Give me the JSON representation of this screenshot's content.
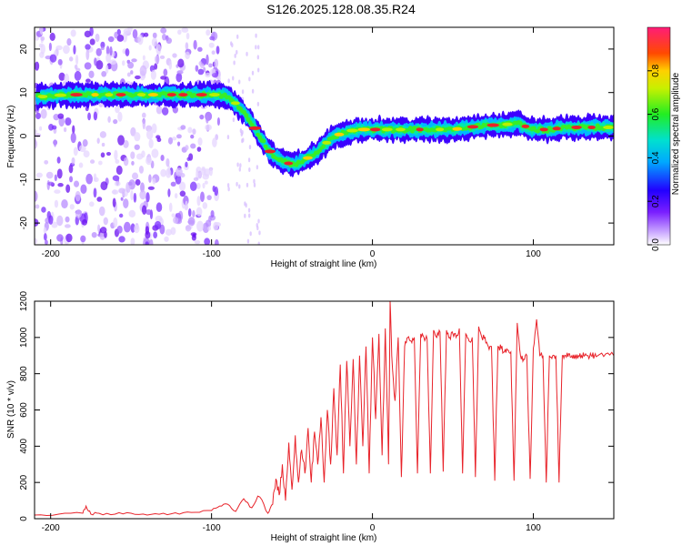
{
  "title": "S126.2025.128.08.35.R24",
  "colors": {
    "line": "#e8232a",
    "axis": "#000000",
    "background": "#ffffff",
    "ridge_core": "#e8232a",
    "ridge_mid": "#00d6c8",
    "ridge_edge": "#3c00ff",
    "noise": "#8a2be2"
  },
  "chart_data": [
    {
      "type": "heatmap",
      "xlabel": "Height of straight line (km)",
      "ylabel": "Frequency (Hz)",
      "xlim": [
        -210,
        150
      ],
      "ylim": [
        -25,
        25
      ],
      "xticks": [
        -200,
        -100,
        0,
        100
      ],
      "yticks": [
        -20,
        -10,
        0,
        10,
        20
      ],
      "xtick_labels": [
        "-200",
        "-100",
        "0",
        "100"
      ],
      "ytick_labels": [
        "-20",
        "-10",
        "0",
        "10",
        "20"
      ],
      "colorbar": {
        "label": "Normalized spectral amplitude",
        "range": [
          0,
          1
        ],
        "ticks": [
          0.0,
          0.2,
          0.4,
          0.6,
          0.8
        ],
        "tick_labels": [
          "0.0",
          "0.2",
          "0.4",
          "0.6",
          "0.8"
        ],
        "colormap": "rainbow (white-purple-blue-cyan-green-yellow-red-magenta)"
      },
      "ridge": {
        "x": [
          -208,
          -190,
          -170,
          -150,
          -130,
          -110,
          -100,
          -95,
          -90,
          -85,
          -80,
          -75,
          -70,
          -65,
          -60,
          -55,
          -50,
          -45,
          -40,
          -35,
          -30,
          -25,
          -20,
          -15,
          -10,
          -5,
          0,
          10,
          20,
          30,
          40,
          50,
          60,
          70,
          80,
          90,
          100,
          110,
          120,
          130,
          140,
          150
        ],
        "y": [
          9,
          9.5,
          9.5,
          9.5,
          9.5,
          9.5,
          9.5,
          9.5,
          9,
          7.5,
          5.5,
          3,
          0,
          -3,
          -5,
          -6,
          -6.5,
          -6,
          -5,
          -4,
          -2,
          -0.5,
          0.5,
          1,
          1.5,
          1.5,
          1.5,
          1.5,
          1.5,
          1.5,
          1.5,
          1.5,
          2,
          2.5,
          2.5,
          3,
          1.5,
          1.5,
          2,
          2,
          2,
          2
        ]
      },
      "noise_region_x": [
        -210,
        -95
      ]
    },
    {
      "type": "line",
      "xlabel": "Height of straight line (km)",
      "ylabel": "SNR (10 * v/v)",
      "xlim": [
        -210,
        150
      ],
      "ylim": [
        0,
        1200
      ],
      "xticks": [
        -200,
        -100,
        0,
        100
      ],
      "yticks": [
        0,
        200,
        400,
        600,
        800,
        1000,
        1200
      ],
      "xtick_labels": [
        "-200",
        "-100",
        "0",
        "100"
      ],
      "ytick_labels": [
        "0",
        "200",
        "400",
        "600",
        "800",
        "1000",
        "1200"
      ],
      "series": [
        {
          "x": [
            -210,
            -195,
            -180,
            -178,
            -175,
            -170,
            -160,
            -150,
            -140,
            -130,
            -120,
            -110,
            -100,
            -95,
            -90,
            -85,
            -80,
            -75,
            -70,
            -65,
            -62,
            -60,
            -58,
            -56,
            -54,
            -52,
            -50,
            -48,
            -46,
            -44,
            -42,
            -40,
            -38,
            -36,
            -34,
            -32,
            -30,
            -28,
            -26,
            -24,
            -22,
            -20,
            -18,
            -16,
            -14,
            -12,
            -10,
            -8,
            -6,
            -4,
            -2,
            0,
            2,
            4,
            6,
            8,
            10,
            11,
            12,
            14,
            16,
            18,
            20,
            22,
            24,
            26,
            28,
            30,
            32,
            34,
            36,
            38,
            40,
            42,
            44,
            46,
            48,
            50,
            52,
            54,
            56,
            58,
            60,
            62,
            64,
            66,
            68,
            70,
            72,
            74,
            76,
            78,
            80,
            82,
            84,
            86,
            88,
            90,
            92,
            94,
            96,
            98,
            100,
            102,
            104,
            106,
            108,
            110,
            112,
            114,
            116,
            118,
            120,
            122,
            124,
            126,
            128,
            130,
            132,
            134,
            136,
            138,
            140,
            145,
            150
          ],
          "y": [
            20,
            25,
            30,
            70,
            25,
            30,
            25,
            30,
            20,
            30,
            25,
            35,
            45,
            70,
            80,
            40,
            110,
            60,
            120,
            30,
            80,
            220,
            130,
            300,
            100,
            420,
            160,
            460,
            200,
            380,
            250,
            500,
            200,
            480,
            300,
            560,
            200,
            600,
            300,
            720,
            350,
            850,
            250,
            870,
            400,
            880,
            300,
            900,
            400,
            950,
            250,
            1000,
            550,
            1020,
            350,
            1050,
            300,
            1200,
            900,
            650,
            1000,
            230,
            950,
            1000,
            980,
            1000,
            250,
            1020,
            1000,
            990,
            250,
            1040,
            1000,
            1030,
            260,
            1040,
            1000,
            1020,
            1000,
            1050,
            250,
            1020,
            980,
            1000,
            230,
            1060,
            1000,
            1000,
            950,
            950,
            210,
            950,
            940,
            920,
            930,
            920,
            210,
            1080,
            900,
            880,
            900,
            220,
            940,
            1100,
            900,
            900,
            200,
            900,
            900,
            900,
            200,
            900,
            900,
            910,
            900,
            900,
            900,
            900,
            900,
            900,
            900,
            900,
            900,
            910,
            900
          ]
        }
      ]
    }
  ]
}
